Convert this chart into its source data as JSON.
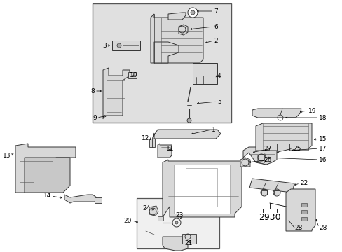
{
  "bg": "#ffffff",
  "box_fill": "#e0e0e0",
  "part_fill": "#d8d8d8",
  "part_edge": "#333333",
  "lw": 0.7,
  "fig_w": 4.89,
  "fig_h": 3.6,
  "dpi": 100
}
